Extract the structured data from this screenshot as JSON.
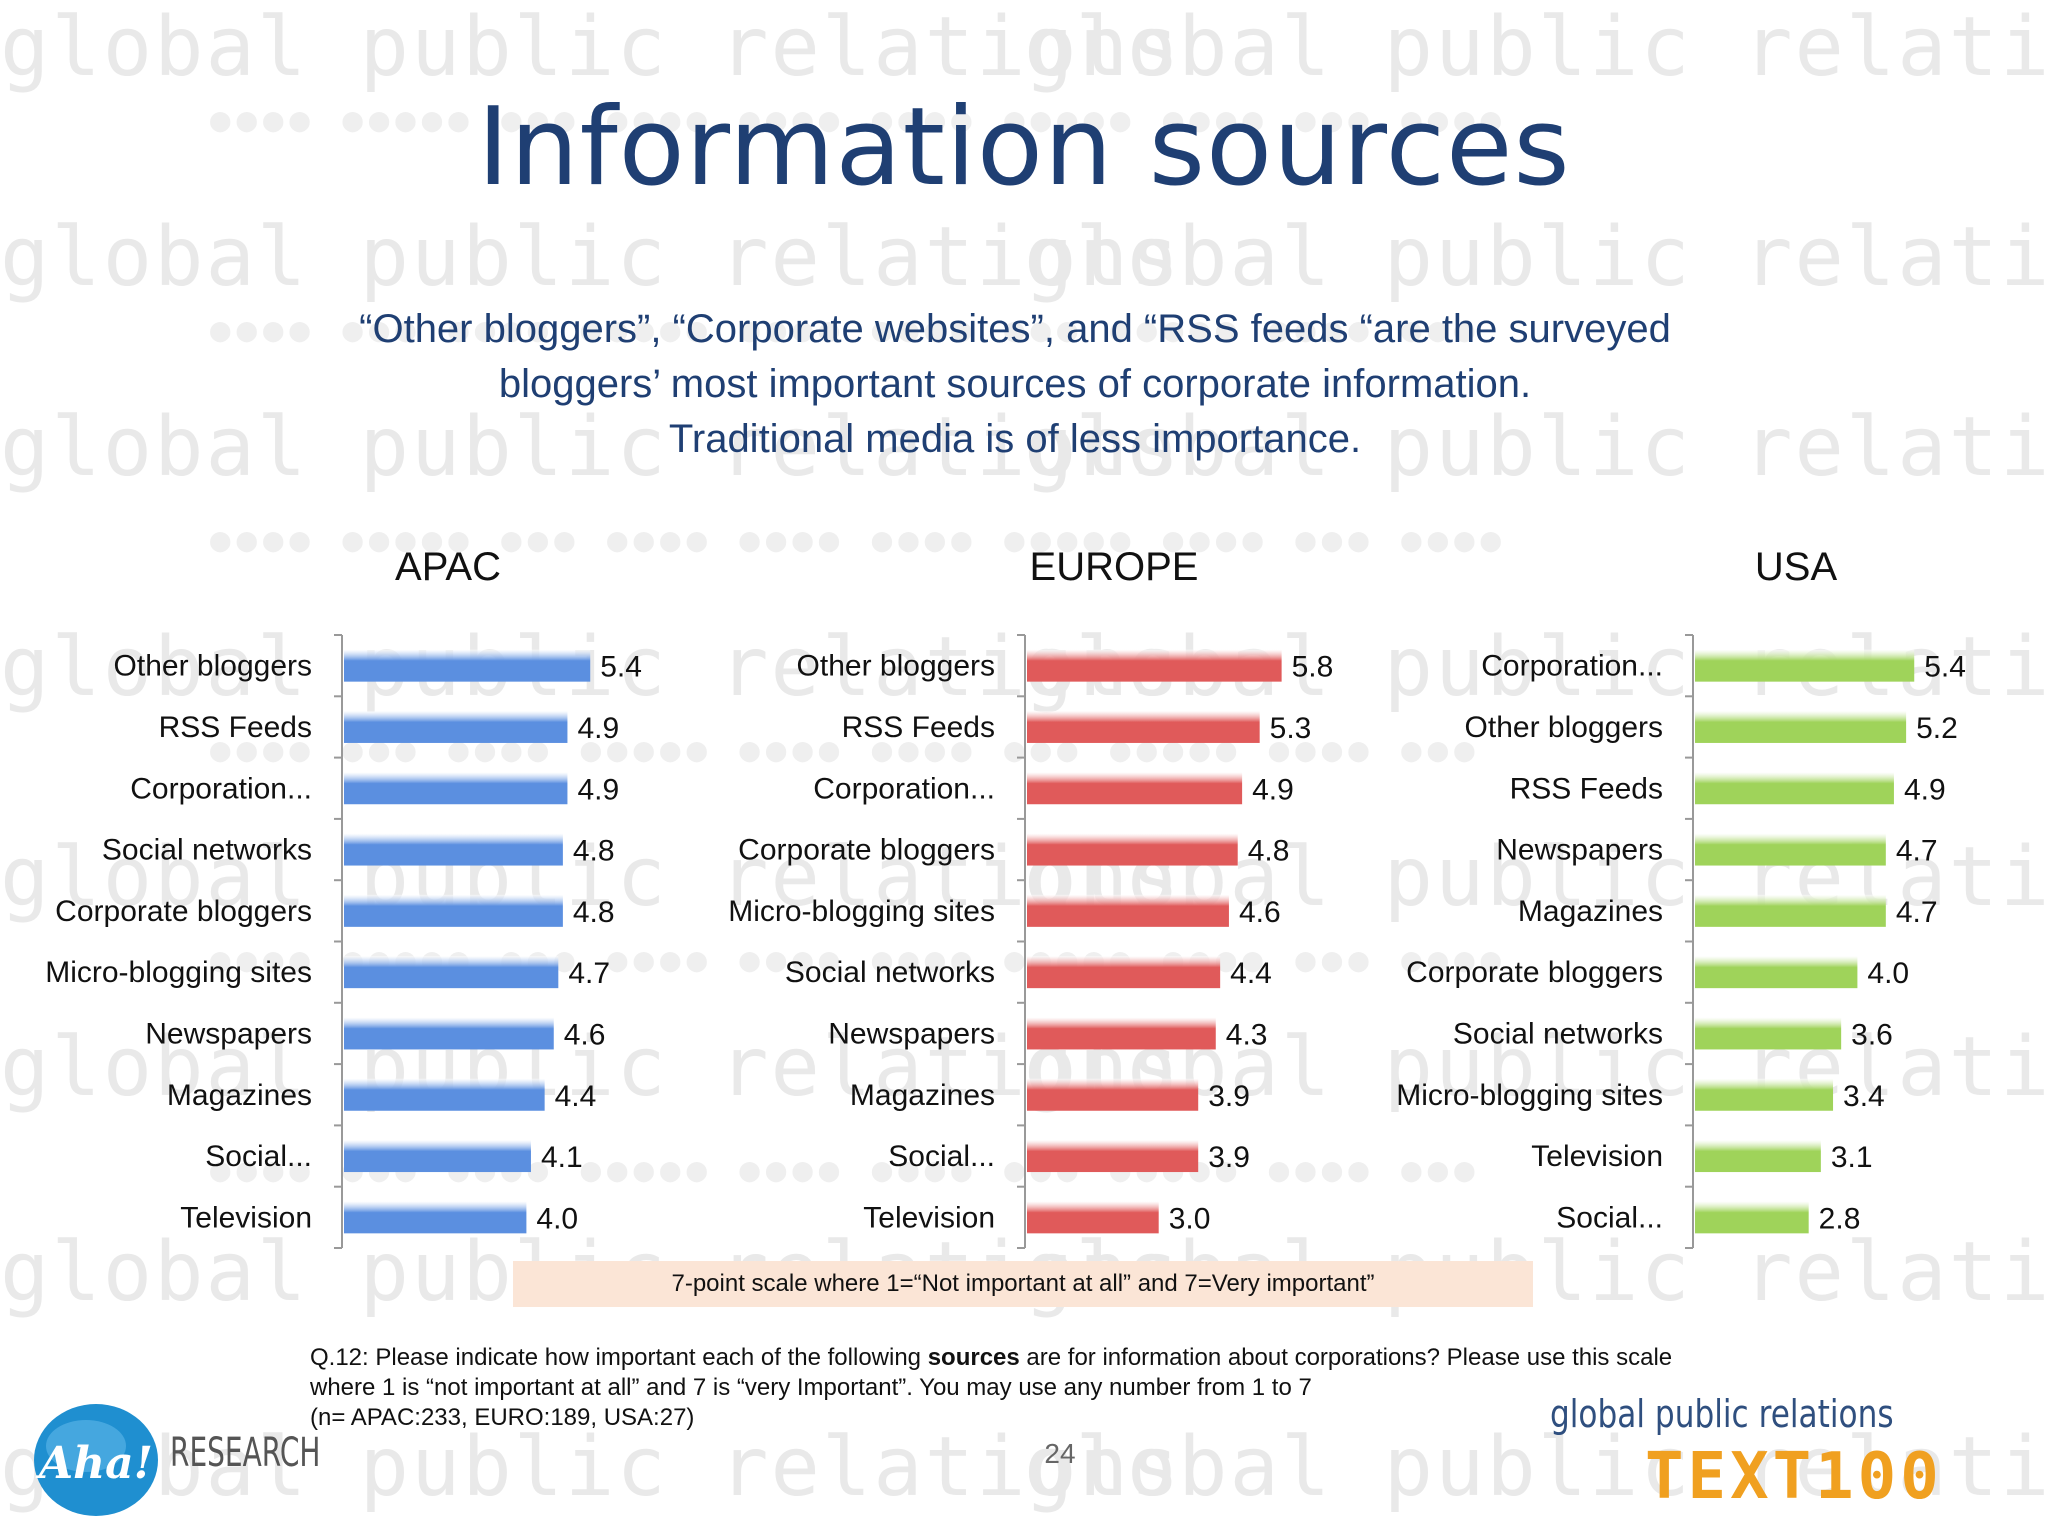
{
  "title": "Information sources",
  "subtitle": {
    "line1": "“Other bloggers”, “Corporate websites”, and “RSS feeds “are the surveyed",
    "line2": "bloggers’ most important sources of corporate information.",
    "line3": "Traditional media is of less importance."
  },
  "watermark_text": "global public relations",
  "colors": {
    "apac": "#5b8fe0",
    "europe": "#e05a5a",
    "usa": "#9fd35a",
    "title": "#1f3f73"
  },
  "chart_data": [
    {
      "type": "bar",
      "orientation": "horizontal",
      "title": "APAC",
      "categories": [
        "Other bloggers",
        "RSS Feeds",
        "Corporation...",
        "Social networks",
        "Corporate bloggers",
        "Micro-blogging sites",
        "Newspapers",
        "Magazines",
        "Social...",
        "Television"
      ],
      "values": [
        5.4,
        4.9,
        4.9,
        4.8,
        4.8,
        4.7,
        4.6,
        4.4,
        4.1,
        4.0
      ],
      "data_labels": [
        "5.4",
        "4.9",
        "4.9",
        "4.8",
        "4.8",
        "4.7",
        "4.6",
        "4.4",
        "4.1",
        "4.0"
      ],
      "xlim": [
        0,
        7
      ],
      "grid": false
    },
    {
      "type": "bar",
      "orientation": "horizontal",
      "title": "EUROPE",
      "categories": [
        "Other bloggers",
        "RSS Feeds",
        "Corporation...",
        "Corporate bloggers",
        "Micro-blogging sites",
        "Social networks",
        "Newspapers",
        "Magazines",
        "Social...",
        "Television"
      ],
      "values": [
        5.8,
        5.3,
        4.9,
        4.8,
        4.6,
        4.4,
        4.3,
        3.9,
        3.9,
        3.0
      ],
      "data_labels": [
        "5.8",
        "5.3",
        "4.9",
        "4.8",
        "4.6",
        "4.4",
        "4.3",
        "3.9",
        "3.9",
        "3.0"
      ],
      "xlim": [
        0,
        7
      ],
      "grid": false
    },
    {
      "type": "bar",
      "orientation": "horizontal",
      "title": "USA",
      "categories": [
        "Corporation...",
        "Other bloggers",
        "RSS Feeds",
        "Newspapers",
        "Magazines",
        "Corporate bloggers",
        "Social networks",
        "Micro-blogging sites",
        "Television",
        "Social..."
      ],
      "values": [
        5.4,
        5.2,
        4.9,
        4.7,
        4.7,
        4.0,
        3.6,
        3.4,
        3.1,
        2.8
      ],
      "data_labels": [
        "5.4",
        "5.2",
        "4.9",
        "4.7",
        "4.7",
        "4.0",
        "3.6",
        "3.4",
        "3.1",
        "2.8"
      ],
      "xlim": [
        0,
        7
      ],
      "grid": false
    }
  ],
  "scale_note": "7-point scale where 1=“Not important at all” and 7=Very important”",
  "question": {
    "part1": "Q.12: Please indicate how important each of the following ",
    "bold": "sources",
    "part2": " are for information about corporations? Please use this scale",
    "line2": "where 1 is “not important at all” and 7 is “very Important”. You may use any number from 1 to 7",
    "line3": "(n= APAC:233, EURO:189, USA:27)"
  },
  "page_number": "24",
  "logo_aha": {
    "mark": "Aha!",
    "word": "RESEARCH"
  },
  "footer_brand": {
    "tagline": "global public relations",
    "name": "TEXT100"
  }
}
